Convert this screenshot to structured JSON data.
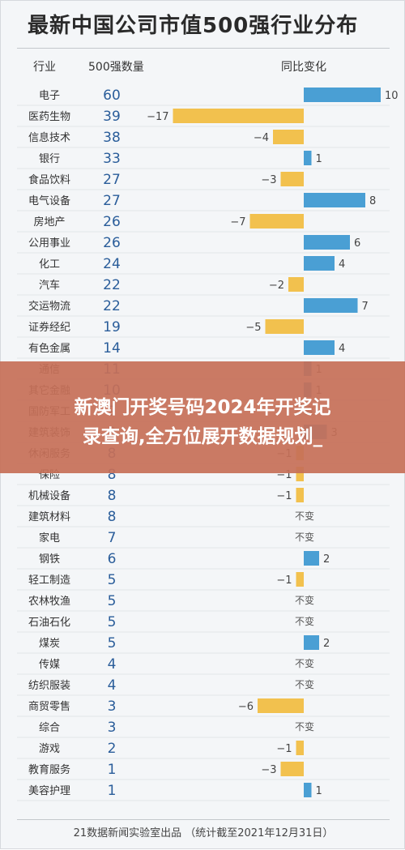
{
  "title": "最新中国公司市值500强行业分布",
  "headers": {
    "industry": "行业",
    "count": "500强数量",
    "change": "同比变化"
  },
  "banner": {
    "line1": "新澳门开奖号码2024年开奖记",
    "line2": "录查询,全方位展开数据规划_"
  },
  "footnote": "21数据新闻实验室出品 （统计截至2021年12月31日）",
  "colors": {
    "positive": "#4a9fd4",
    "negative": "#f2c14e",
    "count_text": "#2a5d9a"
  },
  "chart_data": {
    "type": "bar",
    "title": "最新中国公司市值500强行业分布",
    "zero_label": "不变",
    "categories": [
      "电子",
      "医药生物",
      "信息技术",
      "银行",
      "食品饮料",
      "电气设备",
      "房地产",
      "公用事业",
      "化工",
      "汽车",
      "交运物流",
      "证券经纪",
      "有色金属",
      "通信",
      "其它金融",
      "国防军工",
      "建筑装饰",
      "休闲服务",
      "保险",
      "机械设备",
      "建筑材料",
      "家电",
      "钢铁",
      "轻工制造",
      "农林牧渔",
      "石油石化",
      "煤炭",
      "传媒",
      "纺织服装",
      "商贸零售",
      "综合",
      "游戏",
      "教育服务",
      "美容护理"
    ],
    "series": [
      {
        "name": "500强数量",
        "values": [
          60,
          39,
          38,
          33,
          27,
          27,
          26,
          26,
          24,
          22,
          22,
          19,
          14,
          11,
          10,
          9,
          9,
          8,
          8,
          8,
          8,
          7,
          6,
          5,
          5,
          5,
          5,
          4,
          4,
          3,
          3,
          2,
          1,
          1
        ]
      },
      {
        "name": "同比变化",
        "values": [
          10,
          -17,
          -4,
          1,
          -3,
          8,
          -7,
          6,
          4,
          -2,
          7,
          -5,
          4,
          1,
          1,
          0,
          3,
          -1,
          -1,
          -1,
          0,
          0,
          2,
          -1,
          0,
          0,
          2,
          0,
          0,
          -6,
          0,
          -1,
          -3,
          1
        ]
      }
    ]
  }
}
